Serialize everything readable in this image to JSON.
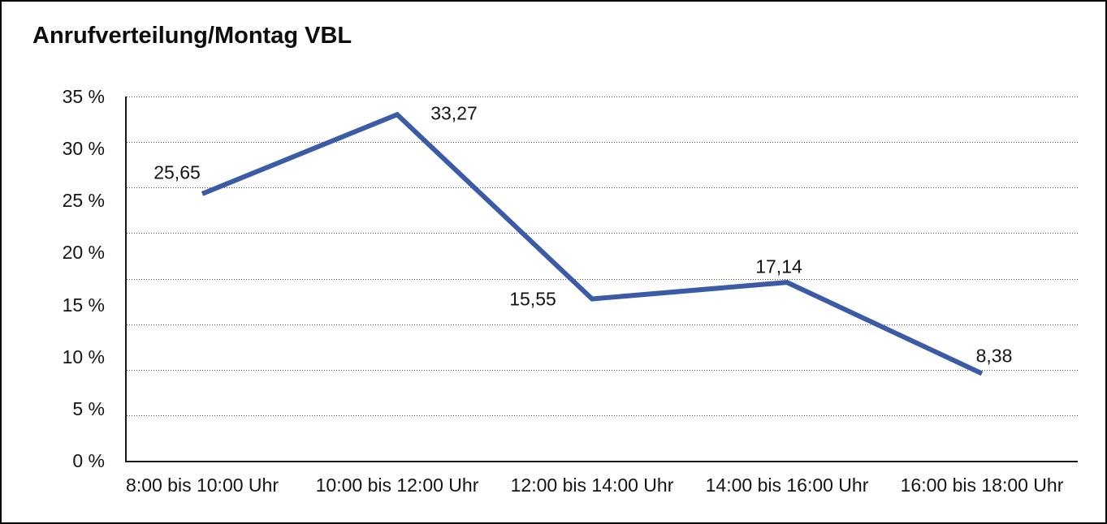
{
  "chart_data": {
    "type": "line",
    "title": "Anrufverteilung/Montag VBL",
    "categories": [
      "8:00 bis 10:00 Uhr",
      "10:00 bis 12:00 Uhr",
      "12:00 bis 14:00 Uhr",
      "14:00 bis 16:00 Uhr",
      "16:00 bis 18:00 Uhr"
    ],
    "values": [
      25.65,
      33.27,
      15.55,
      17.14,
      8.38
    ],
    "value_labels": [
      "25,65",
      "33,27",
      "15,55",
      "17,14",
      "8,38"
    ],
    "xlabel": "",
    "ylabel": "",
    "ylim": [
      0,
      35
    ],
    "y_tick_labels": [
      "35 %",
      "30 %",
      "25 %",
      "20 %",
      "15 %",
      "10 %",
      "5 %",
      "0 %"
    ],
    "grid": "horizontal-dotted",
    "gridline_divisions": 8,
    "legend": "none",
    "line_color": "#3C5BA6",
    "axis_color": "#1a1a1a",
    "text_color": "#141414",
    "background_color": "#ffffff",
    "border_color": "#000000"
  }
}
